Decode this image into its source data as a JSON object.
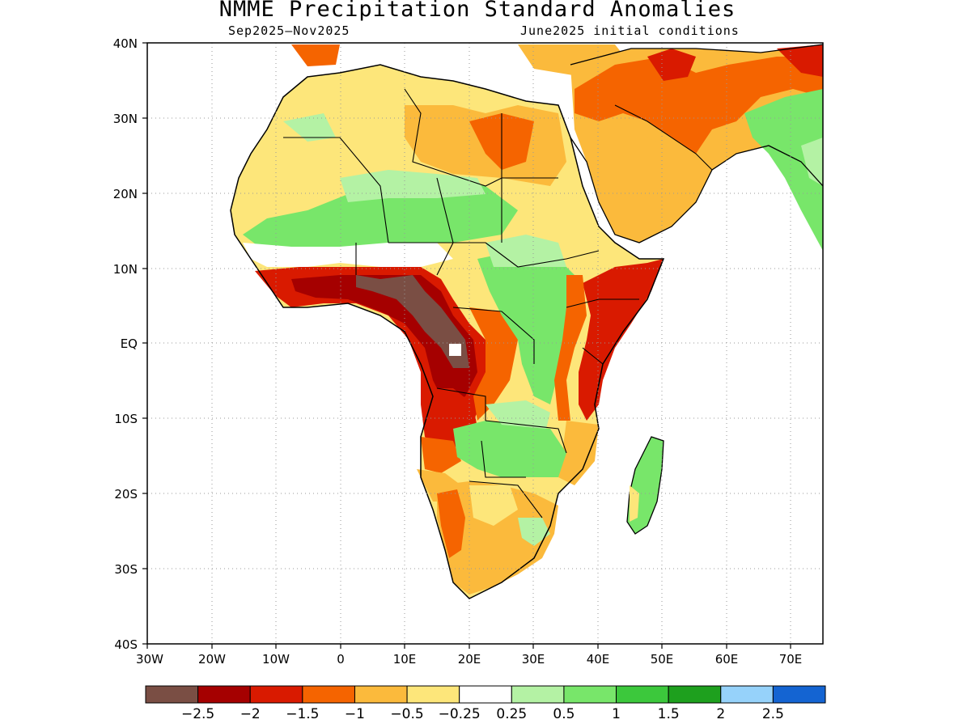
{
  "title": "NMME Precipitation Standard Anomalies",
  "subtitle_left": "Sep2025–Nov2025",
  "subtitle_right": "June2025 initial conditions",
  "lat_labels": [
    "40N",
    "30N",
    "20N",
    "10N",
    "EQ",
    "10S",
    "20S",
    "30S",
    "40S"
  ],
  "lon_labels": [
    "30W",
    "20W",
    "10W",
    "0",
    "10E",
    "20E",
    "30E",
    "40E",
    "50E",
    "60E",
    "70E"
  ],
  "colorbar": {
    "colors": [
      "#7a4e44",
      "#a50000",
      "#d91a00",
      "#f56400",
      "#fbba3c",
      "#fde67a",
      "#ffffff",
      "#b4f2a4",
      "#78e66a",
      "#3cc83c",
      "#1ea01e",
      "#96d2fa",
      "#1464d2"
    ],
    "labels": [
      "−2.5",
      "−2",
      "−1.5",
      "−1",
      "−0.5",
      "−0.25",
      "0.25",
      "0.5",
      "1",
      "1.5",
      "2",
      "2.5"
    ]
  },
  "map_data": {
    "lat_range": [
      -40,
      40
    ],
    "lon_range": [
      -30,
      75
    ],
    "regions": [
      {
        "name": "Mediterranean/Libya dry",
        "level": "-0.5",
        "color": "#fbba3c"
      },
      {
        "name": "Gulf of Guinea coast",
        "level": "-2",
        "color": "#a50000"
      },
      {
        "name": "Congo basin core",
        "level": "-2.5",
        "color": "#7a4e44"
      },
      {
        "name": "East Africa / Somalia coast",
        "level": "-1.5",
        "color": "#d91a00"
      },
      {
        "name": "Arabian Peninsula",
        "level": "-1",
        "color": "#f56400"
      },
      {
        "name": "Sahel band",
        "level": "0.5",
        "color": "#78e66a"
      },
      {
        "name": "South Sudan / Uganda",
        "level": "0.5",
        "color": "#78e66a"
      },
      {
        "name": "Zambia / Mozambique",
        "level": "0.5",
        "color": "#78e66a"
      },
      {
        "name": "Southern Africa",
        "level": "-0.5",
        "color": "#fbba3c"
      },
      {
        "name": "Madagascar east",
        "level": "0.5",
        "color": "#78e66a"
      },
      {
        "name": "Pakistan / India west",
        "level": "0.5",
        "color": "#78e66a"
      }
    ]
  }
}
